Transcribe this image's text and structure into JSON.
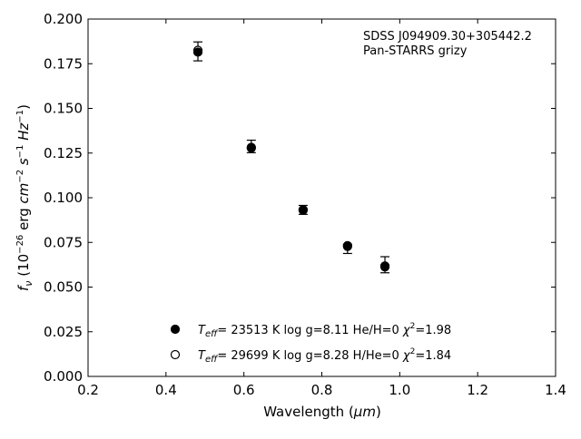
{
  "chart_data": {
    "type": "scatter",
    "xlabel_text": "Wavelength (",
    "xlabel_unit": "μm",
    "xlabel_close": ")",
    "ylabel_f": "f",
    "ylabel_sub": "ν",
    "ylabel_p1": " (10",
    "ylabel_exp1": "−26",
    "ylabel_p2": " erg ",
    "ylabel_cm": "cm",
    "ylabel_exp2": "−2",
    "ylabel_s": " s",
    "ylabel_exp3": "−1",
    "ylabel_hz": " Hz",
    "ylabel_exp4": "−1",
    "ylabel_close": ")",
    "xlim": [
      0.2,
      1.4
    ],
    "ylim": [
      0.0,
      0.2
    ],
    "xticks": [
      "0.2",
      "0.4",
      "0.6",
      "0.8",
      "1.0",
      "1.2",
      "1.4"
    ],
    "yticks": [
      "0.000",
      "0.025",
      "0.050",
      "0.075",
      "0.100",
      "0.125",
      "0.150",
      "0.175",
      "0.200"
    ],
    "annotation": [
      "SDSS J094909.30+305442.2",
      "Pan-STARRS grizy"
    ],
    "observed": {
      "x": [
        0.482,
        0.619,
        0.752,
        0.866,
        0.962
      ],
      "y": [
        0.1818,
        0.1287,
        0.0932,
        0.073,
        0.0615
      ],
      "err_low": [
        0.0052,
        0.0035,
        0.0025,
        0.0042,
        0.0035
      ],
      "err_high": [
        0.0054,
        0.0035,
        0.0025,
        0.001,
        0.0055
      ]
    },
    "series": [
      {
        "marker": "filled",
        "x": [
          0.482,
          0.619,
          0.752,
          0.866,
          0.962
        ],
        "y": [
          0.1815,
          0.1278,
          0.093,
          0.0728,
          0.0613
        ],
        "teff_label": "T",
        "teff_sub": "eff",
        "teff_value": "= 23513 K  log g=8.11  He/H=0  ",
        "chi_sym": "χ",
        "chi_sup": "2",
        "chi_value": "=1.98"
      },
      {
        "marker": "open",
        "x": [
          0.482,
          0.619,
          0.752,
          0.866,
          0.962
        ],
        "y": [
          0.1825,
          0.1282,
          0.0933,
          0.0732,
          0.0618
        ],
        "teff_label": "T",
        "teff_sub": "eff",
        "teff_value": "= 29699 K  log g=8.28  H/He=0  ",
        "chi_sym": "χ",
        "chi_sup": "2",
        "chi_value": "=1.84"
      }
    ]
  }
}
